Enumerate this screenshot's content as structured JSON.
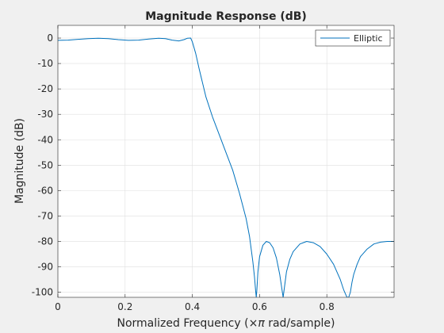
{
  "chart_data": {
    "type": "line",
    "title": "Magnitude Response (dB)",
    "xlabel_prefix": "Normalized Frequency  (",
    "xlabel_times": "×",
    "xlabel_pi": "π",
    "xlabel_suffix": " rad/sample)",
    "ylabel": "Magnitude (dB)",
    "xlim": [
      0,
      1
    ],
    "ylim": [
      -102,
      5
    ],
    "xticks": [
      0,
      0.2,
      0.4,
      0.6,
      0.8
    ],
    "xtick_labels": [
      "0",
      "0.2",
      "0.4",
      "0.6",
      "0.8"
    ],
    "yticks": [
      0,
      -10,
      -20,
      -30,
      -40,
      -50,
      -60,
      -70,
      -80,
      -90,
      -100
    ],
    "ytick_labels": [
      "0",
      "-10",
      "-20",
      "-30",
      "-40",
      "-50",
      "-60",
      "-70",
      "-80",
      "-90",
      "-100"
    ],
    "grid": true,
    "legend_position": "top-right",
    "series": [
      {
        "name": "Elliptic",
        "color": "#0072bd",
        "x": [
          0,
          0.03,
          0.06,
          0.09,
          0.12,
          0.15,
          0.18,
          0.21,
          0.24,
          0.27,
          0.3,
          0.32,
          0.34,
          0.36,
          0.375,
          0.385,
          0.395,
          0.4,
          0.41,
          0.42,
          0.44,
          0.46,
          0.48,
          0.5,
          0.52,
          0.54,
          0.56,
          0.57,
          0.58,
          0.585,
          0.588,
          0.59,
          0.592,
          0.595,
          0.6,
          0.61,
          0.62,
          0.63,
          0.64,
          0.65,
          0.66,
          0.67,
          0.675,
          0.68,
          0.69,
          0.7,
          0.72,
          0.74,
          0.76,
          0.78,
          0.8,
          0.82,
          0.84,
          0.85,
          0.86,
          0.865,
          0.87,
          0.875,
          0.88,
          0.89,
          0.9,
          0.92,
          0.94,
          0.96,
          0.98,
          1.0
        ],
        "y": [
          -0.9,
          -0.8,
          -0.5,
          -0.2,
          -0.1,
          -0.2,
          -0.6,
          -0.9,
          -0.8,
          -0.4,
          -0.1,
          -0.2,
          -0.8,
          -1.1,
          -0.6,
          -0.1,
          0,
          -1.5,
          -6,
          -12,
          -23,
          -31,
          -38,
          -45,
          -52,
          -61,
          -71,
          -78,
          -88,
          -94,
          -99,
          -102,
          -99,
          -92,
          -86,
          -81.5,
          -80,
          -80.5,
          -82.5,
          -86.5,
          -93,
          -102,
          -97,
          -92,
          -87,
          -84,
          -81,
          -80,
          -80.5,
          -82,
          -85,
          -89,
          -95,
          -99,
          -102,
          -102,
          -100,
          -96,
          -93,
          -89,
          -86,
          -83,
          -81,
          -80.3,
          -80,
          -80
        ]
      }
    ]
  }
}
